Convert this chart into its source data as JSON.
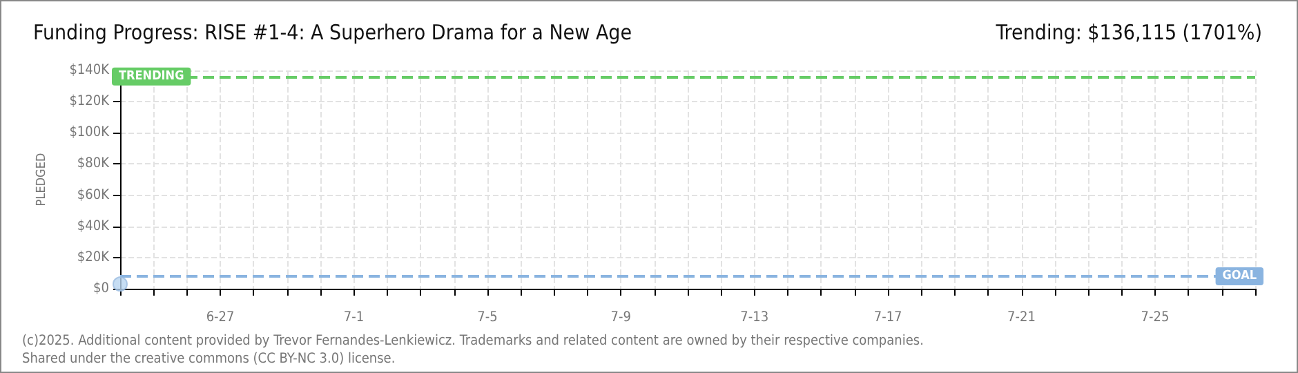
{
  "chart_data": {
    "type": "scatter",
    "title": "Funding Progress: RISE #1-4: A Superhero Drama for a New Age",
    "subtitle": "Trending: $136,115 (1701%)",
    "ylabel": "PLEDGED",
    "x": [
      "--06-24"
    ],
    "series": [
      {
        "color": "#b8d4f0",
        "values": [
          3000
        ]
      }
    ],
    "xlim": [
      "--06-24",
      "--07-28"
    ],
    "xticks": [
      {
        "value": "--06-24",
        "label": null
      },
      {
        "value": "--06-25",
        "label": null
      },
      {
        "value": "--06-26",
        "label": null
      },
      {
        "value": "--06-27",
        "label": "6-27"
      },
      {
        "value": "--06-28",
        "label": null
      },
      {
        "value": "--06-29",
        "label": null
      },
      {
        "value": "--06-30",
        "label": null
      },
      {
        "value": "--07-01",
        "label": "7-1"
      },
      {
        "value": "--07-02",
        "label": null
      },
      {
        "value": "--07-03",
        "label": null
      },
      {
        "value": "--07-04",
        "label": null
      },
      {
        "value": "--07-05",
        "label": "7-5"
      },
      {
        "value": "--07-06",
        "label": null
      },
      {
        "value": "--07-07",
        "label": null
      },
      {
        "value": "--07-08",
        "label": null
      },
      {
        "value": "--07-09",
        "label": "7-9"
      },
      {
        "value": "--07-10",
        "label": null
      },
      {
        "value": "--07-11",
        "label": null
      },
      {
        "value": "--07-12",
        "label": null
      },
      {
        "value": "--07-13",
        "label": "7-13"
      },
      {
        "value": "--07-14",
        "label": null
      },
      {
        "value": "--07-15",
        "label": null
      },
      {
        "value": "--07-16",
        "label": null
      },
      {
        "value": "--07-17",
        "label": "7-17"
      },
      {
        "value": "--07-18",
        "label": null
      },
      {
        "value": "--07-19",
        "label": null
      },
      {
        "value": "--07-20",
        "label": null
      },
      {
        "value": "--07-21",
        "label": "7-21"
      },
      {
        "value": "--07-22",
        "label": null
      },
      {
        "value": "--07-23",
        "label": null
      },
      {
        "value": "--07-24",
        "label": null
      },
      {
        "value": "--07-25",
        "label": "7-25"
      },
      {
        "value": "--07-26",
        "label": null
      },
      {
        "value": "--07-27",
        "label": null
      },
      {
        "value": "--07-28",
        "label": null
      }
    ],
    "ylim": [
      0,
      140000
    ],
    "yticks": [
      {
        "value": 0,
        "label": "$0"
      },
      {
        "value": 20000,
        "label": "$20K"
      },
      {
        "value": 40000,
        "label": "$40K"
      },
      {
        "value": 60000,
        "label": "$60K"
      },
      {
        "value": 80000,
        "label": "$80K"
      },
      {
        "value": 100000,
        "label": "$100K"
      },
      {
        "value": 120000,
        "label": "$120K"
      },
      {
        "value": 140000,
        "label": "$140K"
      }
    ],
    "ref_lines": [
      {
        "axis": "y",
        "value": 136115,
        "label": "TRENDING",
        "color": "#66cc66",
        "line_style": "dashed"
      },
      {
        "axis": "y",
        "value": 8000,
        "label": "GOAL",
        "color": "#8ab4e0",
        "line_style": "dashed"
      }
    ],
    "annotations": [
      "(c)2025. Additional content provided by Trevor Fernandes-Lenkiewicz. Trademarks and related content are owned by their respective companies.",
      "Shared under the creative commons (CC BY-NC 3.0) license."
    ],
    "grid": true,
    "marker": "circle"
  }
}
